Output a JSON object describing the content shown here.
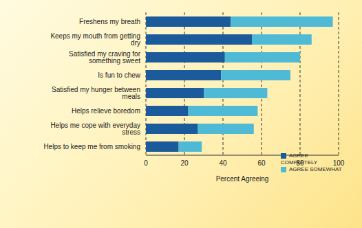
{
  "chart_data": {
    "type": "bar",
    "orientation": "horizontal",
    "stacked": true,
    "x_label": "Percent Agreeing",
    "categories": [
      "Freshens my breath",
      "Keeps my mouth from getting dry",
      "Satisfied my craving for something sweet",
      "Is fun to chew",
      "Satisfied my hunger between meals",
      "Helps relieve boredom",
      "Helps me cope with everyday stress",
      "Helps to keep me from smoking"
    ],
    "series": [
      {
        "name": "AGREE COMPLETELY",
        "color": "#1b5a9b",
        "values": [
          44,
          55,
          41,
          39,
          30,
          22,
          27,
          17
        ]
      },
      {
        "name": "AGREE SOMEWHAT",
        "color": "#4fbad6",
        "values": [
          53,
          31,
          39,
          36,
          33,
          36,
          29,
          12
        ]
      }
    ],
    "xlim": [
      0,
      100
    ],
    "xticks": [
      0,
      20,
      40,
      60,
      80,
      100
    ],
    "grid": true,
    "legend": "lower right"
  }
}
